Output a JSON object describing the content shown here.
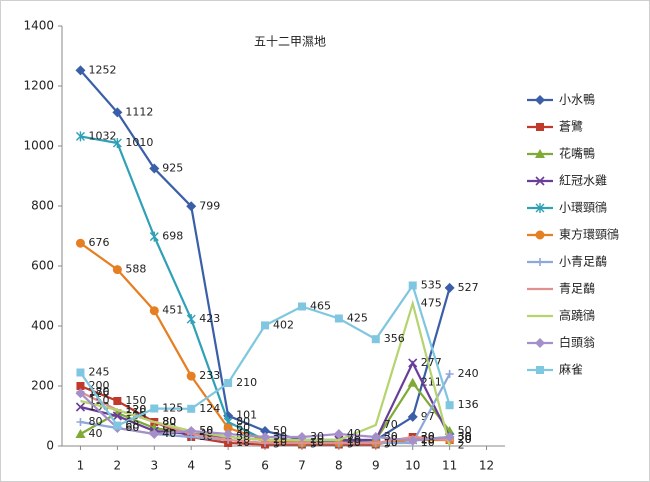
{
  "chart_data": {
    "type": "line",
    "title": "五十二甲濕地",
    "x": [
      1,
      2,
      3,
      4,
      5,
      6,
      7,
      8,
      9,
      10,
      11
    ],
    "xlim": [
      0.5,
      12.5
    ],
    "xticks": [
      1,
      2,
      3,
      4,
      5,
      6,
      7,
      8,
      9,
      10,
      11,
      12
    ],
    "ylim": [
      0,
      1400
    ],
    "yticks": [
      0,
      200,
      400,
      600,
      800,
      1000,
      1200,
      1400
    ],
    "grid": false,
    "legend": "right",
    "data_labels": true,
    "series": [
      {
        "name": "小水鴨",
        "color": "#3a5ea8",
        "marker": "diamond",
        "values": [
          1252,
          1112,
          925,
          799,
          101,
          50,
          20,
          15,
          20,
          97,
          527
        ]
      },
      {
        "name": "蒼鷺",
        "color": "#c0392b",
        "marker": "square",
        "values": [
          200,
          150,
          80,
          30,
          10,
          5,
          5,
          5,
          5,
          30,
          20
        ]
      },
      {
        "name": "花嘴鴨",
        "color": "#7faa35",
        "marker": "triangle",
        "values": [
          40,
          110,
          60,
          40,
          30,
          20,
          20,
          20,
          20,
          211,
          50
        ]
      },
      {
        "name": "紅冠水雞",
        "color": "#6a3d9a",
        "marker": "x",
        "values": [
          130,
          100,
          50,
          40,
          30,
          20,
          20,
          20,
          20,
          277,
          30
        ]
      },
      {
        "name": "小環頸鴴",
        "color": "#2fa0b5",
        "marker": "star",
        "values": [
          1032,
          1010,
          698,
          423,
          80,
          20,
          10,
          10,
          10,
          20,
          30
        ]
      },
      {
        "name": "東方環頸鴴",
        "color": "#e67e22",
        "marker": "circle",
        "values": [
          676,
          588,
          451,
          233,
          60,
          20,
          10,
          10,
          10,
          20,
          20
        ]
      },
      {
        "name": "小青足鷸",
        "color": "#8fa8d8",
        "marker": "plus",
        "values": [
          80,
          60,
          40,
          30,
          20,
          10,
          10,
          10,
          10,
          10,
          240
        ]
      },
      {
        "name": "青足鷸",
        "color": "#e09090",
        "marker": "dash",
        "values": [
          180,
          120,
          80,
          40,
          20,
          10,
          10,
          10,
          10,
          30,
          20
        ]
      },
      {
        "name": "高蹺鴴",
        "color": "#b5d36e",
        "marker": "none",
        "values": [
          150,
          120,
          80,
          50,
          30,
          20,
          20,
          20,
          70,
          475,
          2
        ]
      },
      {
        "name": "白頭翁",
        "color": "#a58fc9",
        "marker": "diamond",
        "values": [
          176,
          60,
          40,
          50,
          40,
          30,
          30,
          40,
          30,
          18,
          30
        ]
      },
      {
        "name": "麻雀",
        "color": "#7fc6e0",
        "marker": "square",
        "values": [
          245,
          68,
          125,
          124,
          210,
          402,
          465,
          425,
          356,
          535,
          136
        ]
      }
    ]
  }
}
